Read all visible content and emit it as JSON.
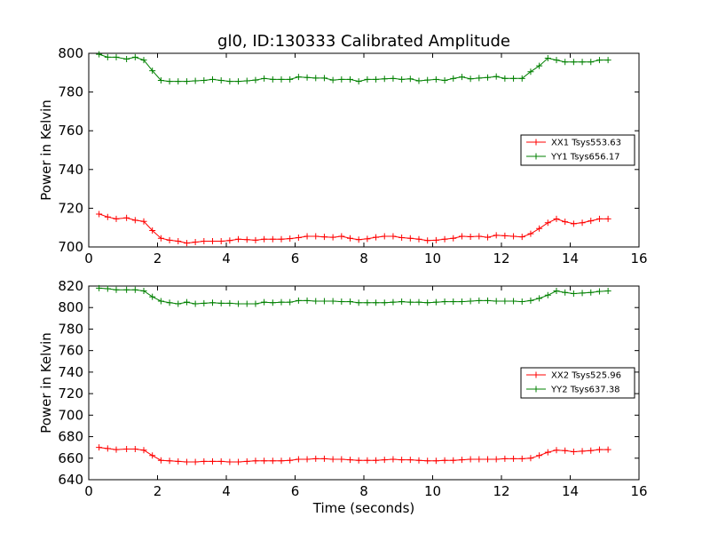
{
  "figure": {
    "background": "#ffffff"
  },
  "chart_data": [
    {
      "type": "line",
      "title": "gl0, ID:130333 Calibrated Amplitude",
      "xlabel": "",
      "ylabel": "Power in Kelvin",
      "xlim": [
        0,
        16
      ],
      "ylim": [
        700,
        800
      ],
      "xticks": [
        0,
        2,
        4,
        6,
        8,
        10,
        12,
        14,
        16
      ],
      "yticks": [
        700,
        720,
        740,
        760,
        780,
        800
      ],
      "grid": false,
      "legend": "center-right",
      "series": [
        {
          "name": "XX1 Tsys553.63",
          "color": "#ff0000",
          "marker": "+",
          "x": [
            0.3,
            0.55,
            0.8,
            1.1,
            1.35,
            1.6,
            1.85,
            2.1,
            2.35,
            2.6,
            2.85,
            3.1,
            3.35,
            3.6,
            3.85,
            4.1,
            4.35,
            4.6,
            4.85,
            5.1,
            5.35,
            5.6,
            5.85,
            6.1,
            6.35,
            6.6,
            6.85,
            7.1,
            7.35,
            7.6,
            7.85,
            8.1,
            8.35,
            8.6,
            8.85,
            9.1,
            9.35,
            9.6,
            9.85,
            10.1,
            10.35,
            10.6,
            10.85,
            11.1,
            11.35,
            11.6,
            11.85,
            12.1,
            12.35,
            12.6,
            12.85,
            13.1,
            13.35,
            13.6,
            13.85,
            14.1,
            14.35,
            14.6,
            14.85,
            15.1
          ],
          "y": [
            717,
            715.5,
            714.5,
            715,
            713.8,
            713.2,
            708.5,
            704.5,
            703.5,
            703,
            702,
            702.5,
            703,
            703,
            703,
            703.3,
            704,
            703.8,
            703.5,
            704,
            704,
            704,
            704.3,
            704.8,
            705.5,
            705.5,
            705.2,
            705,
            705.5,
            704.5,
            703.8,
            704.2,
            705,
            705.5,
            705.5,
            704.8,
            704.5,
            704,
            703.3,
            703.5,
            704,
            704.5,
            705.5,
            705.3,
            705.5,
            705,
            706,
            705.8,
            705.5,
            705.2,
            706.8,
            709.5,
            712.5,
            714.5,
            713,
            712,
            712.5,
            713.5,
            714.5,
            714.5
          ]
        },
        {
          "name": "YY1 Tsys656.17",
          "color": "#008000",
          "marker": "+",
          "x": [
            0.3,
            0.55,
            0.8,
            1.1,
            1.35,
            1.6,
            1.85,
            2.1,
            2.35,
            2.6,
            2.85,
            3.1,
            3.35,
            3.6,
            3.85,
            4.1,
            4.35,
            4.6,
            4.85,
            5.1,
            5.35,
            5.6,
            5.85,
            6.1,
            6.35,
            6.6,
            6.85,
            7.1,
            7.35,
            7.6,
            7.85,
            8.1,
            8.35,
            8.6,
            8.85,
            9.1,
            9.35,
            9.6,
            9.85,
            10.1,
            10.35,
            10.6,
            10.85,
            11.1,
            11.35,
            11.6,
            11.85,
            12.1,
            12.35,
            12.6,
            12.85,
            13.1,
            13.35,
            13.6,
            13.85,
            14.1,
            14.35,
            14.6,
            14.85,
            15.1
          ],
          "y": [
            799.5,
            798,
            798,
            797,
            798,
            796.5,
            791,
            786,
            785.5,
            785.5,
            785.5,
            785.8,
            786,
            786.5,
            786,
            785.5,
            785.5,
            785.8,
            786.2,
            787,
            786.5,
            786.5,
            786.5,
            787.8,
            787.5,
            787.2,
            787.2,
            786.2,
            786.5,
            786.5,
            785.5,
            786.5,
            786.5,
            786.8,
            787,
            786.5,
            786.8,
            785.8,
            786.2,
            786.5,
            786,
            787,
            787.8,
            786.8,
            787.2,
            787.5,
            788,
            787,
            787,
            787,
            790.5,
            793.5,
            797.5,
            796.5,
            795.5,
            795.5,
            795.5,
            795.5,
            796.5,
            796.5
          ]
        }
      ]
    },
    {
      "type": "line",
      "title": "",
      "xlabel": "Time (seconds)",
      "ylabel": "Power in Kelvin",
      "xlim": [
        0,
        16
      ],
      "ylim": [
        640,
        820
      ],
      "xticks": [
        0,
        2,
        4,
        6,
        8,
        10,
        12,
        14,
        16
      ],
      "yticks": [
        640,
        660,
        680,
        700,
        720,
        740,
        760,
        780,
        800,
        820
      ],
      "grid": false,
      "legend": "center-right",
      "series": [
        {
          "name": "XX2 Tsys525.96",
          "color": "#ff0000",
          "marker": "+",
          "x": [
            0.3,
            0.55,
            0.8,
            1.1,
            1.35,
            1.6,
            1.85,
            2.1,
            2.35,
            2.6,
            2.85,
            3.1,
            3.35,
            3.6,
            3.85,
            4.1,
            4.35,
            4.6,
            4.85,
            5.1,
            5.35,
            5.6,
            5.85,
            6.1,
            6.35,
            6.6,
            6.85,
            7.1,
            7.35,
            7.6,
            7.85,
            8.1,
            8.35,
            8.6,
            8.85,
            9.1,
            9.35,
            9.6,
            9.85,
            10.1,
            10.35,
            10.6,
            10.85,
            11.1,
            11.35,
            11.6,
            11.85,
            12.1,
            12.35,
            12.6,
            12.85,
            13.1,
            13.35,
            13.6,
            13.85,
            14.1,
            14.35,
            14.6,
            14.85,
            15.1
          ],
          "y": [
            670,
            669,
            668,
            668.5,
            668.5,
            667.5,
            662.5,
            658,
            657.5,
            657,
            656.5,
            656.5,
            657,
            657,
            657,
            656.5,
            656.5,
            657,
            657.5,
            657.5,
            657.5,
            657.5,
            658,
            659,
            659,
            659.5,
            659.5,
            659,
            659,
            658.5,
            658,
            658,
            658,
            658.5,
            659,
            658.5,
            658.5,
            658,
            657.5,
            657.5,
            658,
            658,
            658.5,
            659,
            659,
            659,
            659,
            659.5,
            659.5,
            659.5,
            660,
            662.5,
            665.5,
            667.5,
            667,
            666,
            666.5,
            667,
            668,
            668
          ]
        },
        {
          "name": "YY2 Tsys637.38",
          "color": "#008000",
          "marker": "+",
          "x": [
            0.3,
            0.55,
            0.8,
            1.1,
            1.35,
            1.6,
            1.85,
            2.1,
            2.35,
            2.6,
            2.85,
            3.1,
            3.35,
            3.6,
            3.85,
            4.1,
            4.35,
            4.6,
            4.85,
            5.1,
            5.35,
            5.6,
            5.85,
            6.1,
            6.35,
            6.6,
            6.85,
            7.1,
            7.35,
            7.6,
            7.85,
            8.1,
            8.35,
            8.6,
            8.85,
            9.1,
            9.35,
            9.6,
            9.85,
            10.1,
            10.35,
            10.6,
            10.85,
            11.1,
            11.35,
            11.6,
            11.85,
            12.1,
            12.35,
            12.6,
            12.85,
            13.1,
            13.35,
            13.6,
            13.85,
            14.1,
            14.35,
            14.6,
            14.85,
            15.1
          ],
          "y": [
            818,
            817.5,
            816.5,
            816.5,
            816.5,
            815.5,
            810,
            806,
            804.5,
            803.5,
            805,
            803.5,
            804,
            804.5,
            804,
            804,
            803.5,
            803.5,
            803.5,
            805,
            804.5,
            805,
            805,
            806.5,
            806.5,
            806,
            806,
            806,
            805.5,
            805.5,
            804.5,
            804.5,
            804.5,
            804.5,
            805,
            805.5,
            805,
            805,
            804.5,
            805,
            805.5,
            805.5,
            805.5,
            806,
            806.5,
            806.5,
            806,
            806,
            806,
            805.5,
            806.5,
            808.5,
            811.5,
            815.5,
            814,
            813,
            813.5,
            814,
            815,
            815.5
          ]
        }
      ]
    }
  ]
}
